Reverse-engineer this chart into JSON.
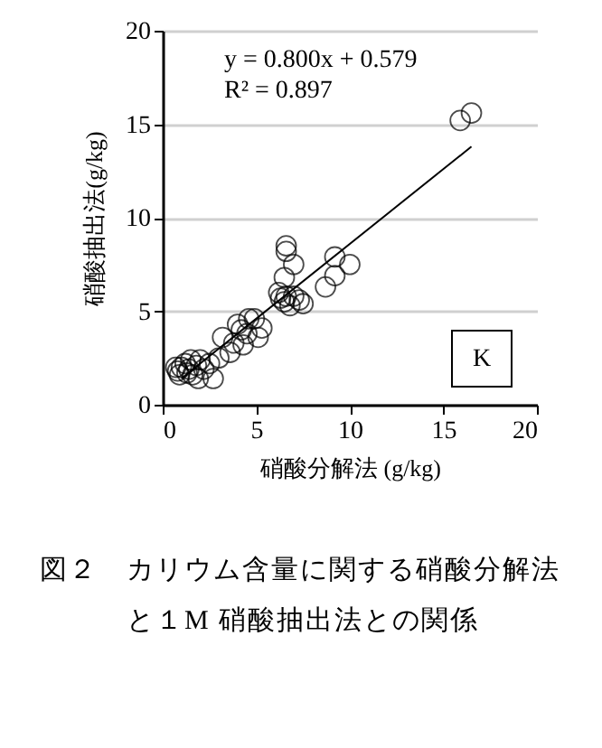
{
  "chart_data": {
    "type": "scatter",
    "xlabel": "硝酸分解法  (g/kg)",
    "ylabel": "硝酸抽出法(g/kg)",
    "xlim": [
      0,
      20
    ],
    "ylim": [
      0,
      20
    ],
    "xticks": [
      0,
      5,
      10,
      15,
      20
    ],
    "yticks": [
      0,
      5,
      10,
      15,
      20
    ],
    "grid": "y",
    "marker": "circle",
    "series": [
      {
        "color": "#000000",
        "x": [
          15.9,
          16.5,
          9.2,
          10.0,
          9.2,
          8.7,
          6.6,
          6.6,
          7.0,
          6.5,
          6.2,
          6.6,
          6.5,
          7.0,
          7.3,
          6.8,
          7.5,
          6.3,
          4.9,
          4.6,
          4.0,
          3.2,
          4.5,
          5.1,
          4.3,
          3.6,
          3.0,
          2.5,
          2.2,
          1.9,
          2.7,
          2.0,
          0.8,
          1.0,
          1.2,
          1.4,
          0.9,
          1.5,
          1.3,
          1.6,
          0.7,
          1.8,
          4.2,
          3.8,
          5.3
        ],
        "values": [
          15.2,
          15.6,
          7.9,
          7.5,
          6.9,
          6.3,
          8.5,
          8.2,
          7.5,
          6.8,
          6.0,
          5.8,
          5.5,
          5.8,
          5.6,
          5.3,
          5.4,
          5.7,
          4.6,
          4.6,
          4.3,
          3.6,
          3.8,
          3.6,
          3.2,
          2.8,
          2.5,
          2.2,
          1.9,
          1.4,
          1.4,
          2.4,
          1.8,
          2.0,
          2.2,
          1.9,
          1.6,
          2.4,
          1.7,
          1.6,
          2.0,
          2.1,
          4.0,
          3.3,
          4.1
        ]
      },
      {
        "type": "line",
        "marker": "none",
        "color": "#000000",
        "x": [
          1.0,
          16.5
        ],
        "values": [
          1.4,
          13.8
        ]
      }
    ],
    "annotations": [
      "y = 0.800x + 0.579",
      "R² = 0.897",
      "K",
      "図２　カリウム含量に関する硝酸分解法と１M 硝酸抽出法との関係"
    ]
  }
}
